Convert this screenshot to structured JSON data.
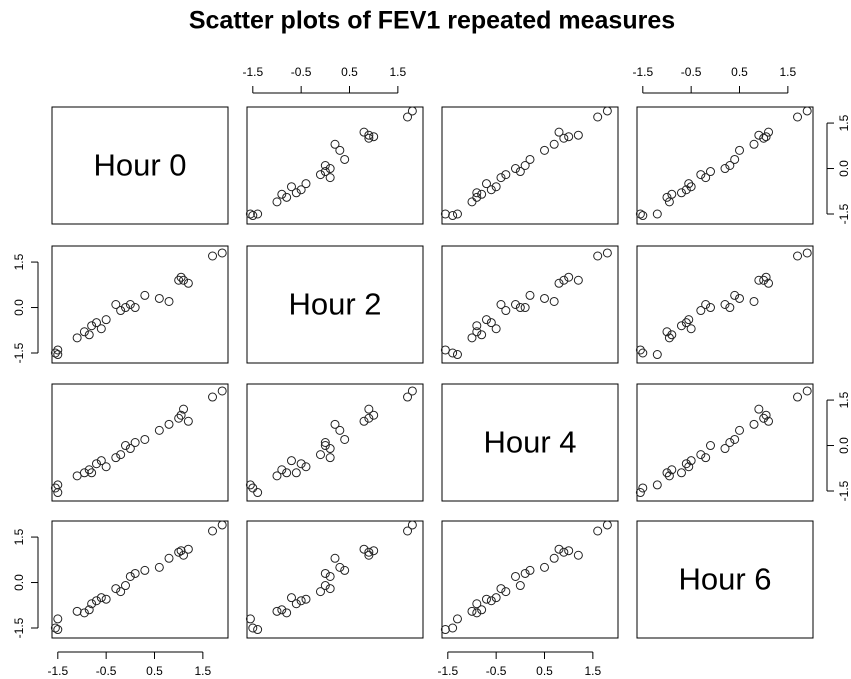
{
  "chart_data": {
    "type": "pairs",
    "title": "Scatter plots of FEV1 repeated measures",
    "series": [
      {
        "name": "Hour 0",
        "values": [
          -1.55,
          -1.5,
          -1.5,
          -1.1,
          -0.95,
          -0.85,
          -0.8,
          -0.7,
          -0.6,
          -0.5,
          -0.2,
          -0.1,
          0.0,
          0.1,
          0.3,
          0.6,
          0.8,
          1.0,
          1.05,
          1.1,
          1.2,
          1.7,
          1.9,
          -0.3
        ]
      },
      {
        "name": "Hour 2",
        "values": [
          -1.5,
          -1.4,
          -1.55,
          -1.0,
          -0.8,
          -0.9,
          -0.6,
          -0.5,
          -0.7,
          -0.4,
          -0.1,
          0.0,
          0.1,
          0.0,
          0.4,
          0.3,
          0.2,
          0.9,
          1.0,
          0.9,
          0.8,
          1.7,
          1.8,
          0.1
        ]
      },
      {
        "name": "Hour 4",
        "values": [
          -1.4,
          -1.55,
          -1.3,
          -1.0,
          -0.9,
          -0.8,
          -0.9,
          -0.6,
          -0.5,
          -0.7,
          -0.3,
          0.0,
          -0.1,
          0.1,
          0.2,
          0.5,
          0.7,
          0.9,
          1.0,
          1.2,
          0.8,
          1.6,
          1.8,
          -0.4
        ]
      },
      {
        "name": "Hour 6",
        "values": [
          -1.5,
          -1.55,
          -1.2,
          -0.95,
          -1.0,
          -0.9,
          -0.7,
          -0.6,
          -0.5,
          -0.55,
          -0.3,
          -0.1,
          0.2,
          0.3,
          0.4,
          0.5,
          0.8,
          1.0,
          1.05,
          0.9,
          1.1,
          1.7,
          1.9,
          -0.2
        ]
      }
    ],
    "xlim": [
      -1.62,
      2.02
    ],
    "ylim": [
      -1.83,
      2.03
    ],
    "xticks": [
      -1.5,
      -0.5,
      0.5,
      1.5
    ],
    "yticks": [
      -1.5,
      {
        "value": 0,
        "label": "0.0"
      },
      1.5
    ]
  }
}
